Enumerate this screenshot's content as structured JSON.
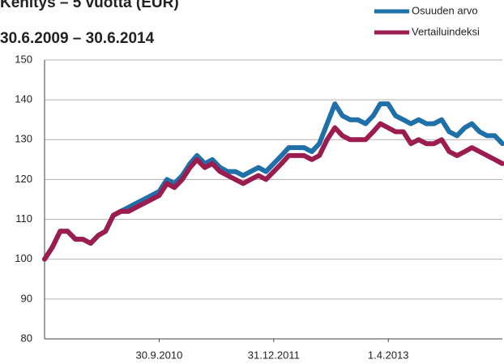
{
  "chart_data": {
    "type": "line",
    "title": "Kehitys – 5 vuotta (EUR)",
    "subtitle": "30.6.2009 – 30.6.2014",
    "x": [
      "30.6.2009",
      "31.7.2009",
      "31.8.2009",
      "30.9.2009",
      "31.10.2009",
      "30.11.2009",
      "31.12.2009",
      "31.1.2010",
      "28.2.2010",
      "31.3.2010",
      "30.4.2010",
      "31.5.2010",
      "30.6.2010",
      "31.7.2010",
      "31.8.2010",
      "30.9.2010",
      "31.10.2010",
      "30.11.2010",
      "31.12.2010",
      "31.1.2011",
      "28.2.2011",
      "31.3.2011",
      "30.4.2011",
      "31.5.2011",
      "30.6.2011",
      "31.7.2011",
      "31.8.2011",
      "30.9.2011",
      "31.10.2011",
      "30.11.2011",
      "31.12.2011",
      "31.1.2012",
      "29.2.2012",
      "31.3.2012",
      "30.4.2012",
      "31.5.2012",
      "30.6.2012",
      "31.7.2012",
      "31.8.2012",
      "30.9.2012",
      "31.10.2012",
      "30.11.2012",
      "31.12.2012",
      "31.1.2013",
      "28.2.2013",
      "31.3.2013",
      "30.4.2013",
      "31.5.2013",
      "30.6.2013",
      "31.7.2013",
      "31.8.2013",
      "30.9.2013",
      "31.10.2013",
      "30.11.2013",
      "31.12.2013",
      "31.1.2014",
      "28.2.2014",
      "31.3.2014",
      "30.4.2014",
      "31.5.2014",
      "30.6.2014"
    ],
    "series": [
      {
        "name": "Osuuden arvo",
        "color": "#1f6fa8",
        "values": [
          100,
          103,
          107,
          107,
          105,
          105,
          104,
          106,
          107,
          111,
          112,
          113,
          114,
          115,
          116,
          117,
          120,
          119,
          121,
          124,
          126,
          124,
          125,
          123,
          122,
          122,
          121,
          122,
          123,
          122,
          124,
          126,
          128,
          128,
          128,
          127,
          129,
          134,
          139,
          136,
          135,
          135,
          134,
          136,
          139,
          139,
          136,
          135,
          134,
          135,
          134,
          134,
          135,
          132,
          131,
          133,
          134,
          132,
          131,
          131,
          129
        ]
      },
      {
        "name": "Vertailuindeksi",
        "color": "#9b1c4e",
        "values": [
          100,
          103,
          107,
          107,
          105,
          105,
          104,
          106,
          107,
          111,
          112,
          112,
          113,
          114,
          115,
          116,
          119,
          118,
          120,
          123,
          125,
          123,
          124,
          122,
          121,
          120,
          119,
          120,
          121,
          120,
          122,
          124,
          126,
          126,
          126,
          125,
          126,
          130,
          133,
          131,
          130,
          130,
          130,
          132,
          134,
          133,
          132,
          132,
          129,
          130,
          129,
          129,
          130,
          127,
          126,
          127,
          128,
          127,
          126,
          125,
          124
        ]
      }
    ],
    "xlim": [
      "30.6.2009",
      "30.6.2014"
    ],
    "xticks": [
      "30.9.2010",
      "31.12.2011",
      "1.4.2013"
    ],
    "ylim": [
      80,
      150
    ],
    "yticks": [
      80,
      90,
      100,
      110,
      120,
      130,
      140,
      150
    ],
    "grid": true,
    "legend": "top-right"
  }
}
